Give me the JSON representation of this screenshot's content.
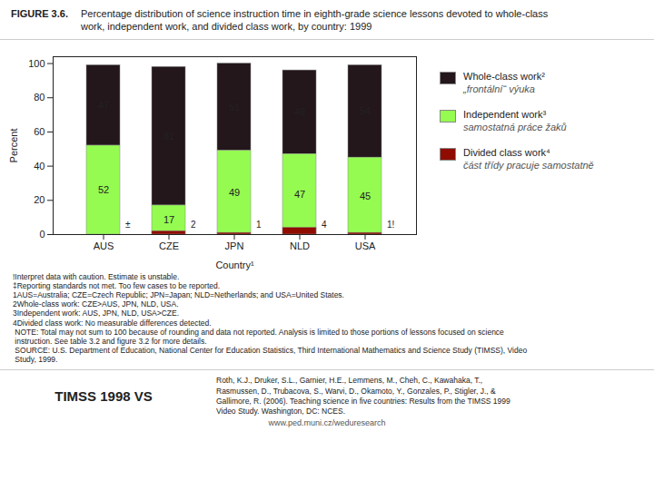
{
  "chart_data": {
    "type": "bar",
    "title": "Percentage distribution of science instruction time in eighth-grade science lessons devoted to whole-class\nwork, independent work, and divided class work, by country: 1999",
    "xlabel": "Country¹",
    "ylabel": "Percent",
    "categories": [
      "AUS",
      "CZE",
      "JPN",
      "NLD",
      "USA"
    ],
    "series": [
      {
        "name": "Whole-class work²",
        "values": [
          47,
          81,
          51,
          49,
          54
        ]
      },
      {
        "name": "Independent work³",
        "values": [
          52,
          17,
          49,
          47,
          45
        ]
      },
      {
        "name": "Divided class work⁴",
        "values": [
          0,
          2,
          1,
          4,
          1
        ],
        "stacked": false,
        "value_labels": [
          "±",
          "2",
          "1",
          "4",
          "1!"
        ]
      }
    ],
    "stacked": true,
    "data_labels": true,
    "ylim": [
      0,
      104
    ],
    "yticks": [
      0,
      20,
      40,
      60,
      80,
      100
    ],
    "grid": false,
    "legend": "right",
    "annotations": {
      "figure_label": "FIGURE 3.6.",
      "legend_subtitles": [
        "„frontální“ výuka",
        "samostatná práce žaků",
        "část třídy pracuje samostatně"
      ],
      "notes": [
        "!Interpret data with caution. Estimate is unstable.",
        "‡Reporting standards not met. Too few cases to be reported.",
        "1AUS=Australia; CZE=Czech Republic; JPN=Japan; NLD=Netherlands; and USA=United States.",
        "2Whole-class work: CZE>AUS, JPN, NLD, USA.",
        "3Independent work: AUS, JPN, NLD, USA>CZE.",
        "4Divided class work: No measurable differences detected.",
        " NOTE: Total may not sum to 100 because of rounding and data not reported. Analysis is limited to those portions of lessons focused on science",
        " instruction. See table 3.2 and figure 3.2 for more details.",
        " SOURCE: U.S. Department of Education, National Center for Education Statistics, Third International Mathematics and Science Study (TIMSS), Video",
        " Study, 1999."
      ],
      "footer_title": "TIMSS 1998 VS",
      "reference": "Roth, K.J., Druker, S.L., Garnier, H.E., Lemmens, M., Cheh, C., Kawahaka, T.,\nRasmussen, D., Trubacova, S., Warvi, D., Okamoto, Y., Gonzales, P., Stigler, J., &\nGallimore, R. (2006). Teaching science in five countries: Results from the TIMSS 1999\nVideo Study. Washington, DC: NCES.",
      "website": "www.ped.muni.cz/weduresearch"
    }
  }
}
